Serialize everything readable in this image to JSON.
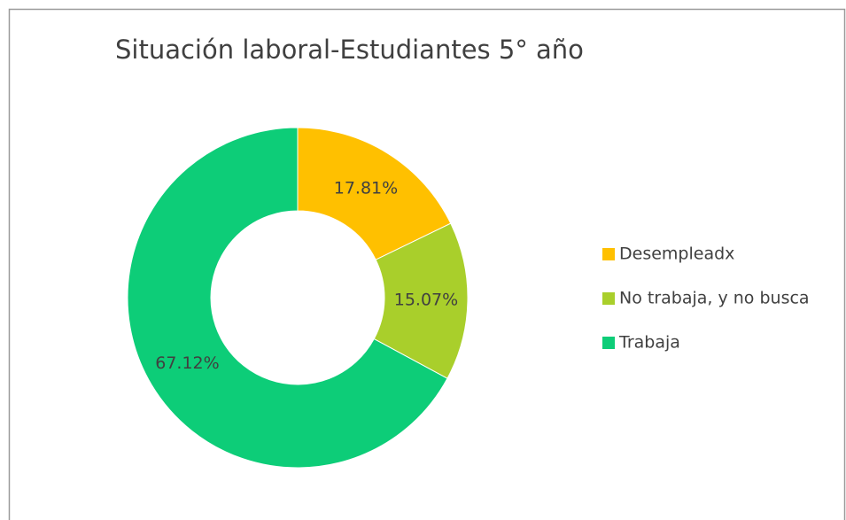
{
  "chart_data": {
    "type": "donut",
    "title": "Situación laboral-Estudiantes 5° año",
    "categories": [
      "Desempleadx",
      "No trabaja, y no busca",
      "Trabaja"
    ],
    "values": [
      17.81,
      15.07,
      67.12
    ],
    "value_labels": [
      "17.81%",
      "15.07%",
      "67.12%"
    ],
    "colors": [
      "#ffc000",
      "#a9cf2b",
      "#0dcd78"
    ],
    "legend": "right"
  }
}
